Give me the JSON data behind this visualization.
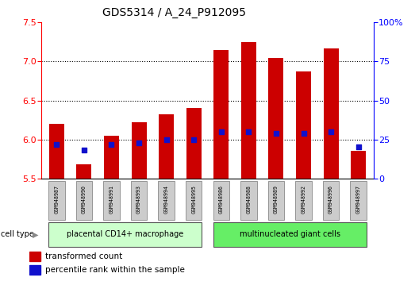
{
  "title": "GDS5314 / A_24_P912095",
  "samples": [
    "GSM948987",
    "GSM948990",
    "GSM948991",
    "GSM948993",
    "GSM948994",
    "GSM948995",
    "GSM948986",
    "GSM948988",
    "GSM948989",
    "GSM948992",
    "GSM948996",
    "GSM948997"
  ],
  "transformed_count": [
    6.2,
    5.68,
    6.05,
    6.22,
    6.32,
    6.4,
    7.15,
    7.25,
    7.05,
    6.87,
    7.17,
    5.85
  ],
  "percentile_rank": [
    22,
    18,
    22,
    23,
    25,
    25,
    30,
    30,
    29,
    29,
    30,
    20
  ],
  "bar_color": "#cc0000",
  "dot_color": "#1010cc",
  "ymin": 5.5,
  "ymax": 7.5,
  "y2min": 0,
  "y2max": 100,
  "yticks": [
    5.5,
    6.0,
    6.5,
    7.0,
    7.5
  ],
  "y2ticks": [
    0,
    25,
    50,
    75,
    100
  ],
  "group1_label": "placental CD14+ macrophage",
  "group2_label": "multinucleated giant cells",
  "group1_count": 6,
  "group2_count": 6,
  "cell_type_label": "cell type",
  "legend1": "transformed count",
  "legend2": "percentile rank within the sample",
  "group1_color": "#ccffcc",
  "group2_color": "#66ee66",
  "bar_width": 0.55,
  "sample_box_color": "#cccccc",
  "tick_label_fontsize": 8,
  "title_fontsize": 10
}
